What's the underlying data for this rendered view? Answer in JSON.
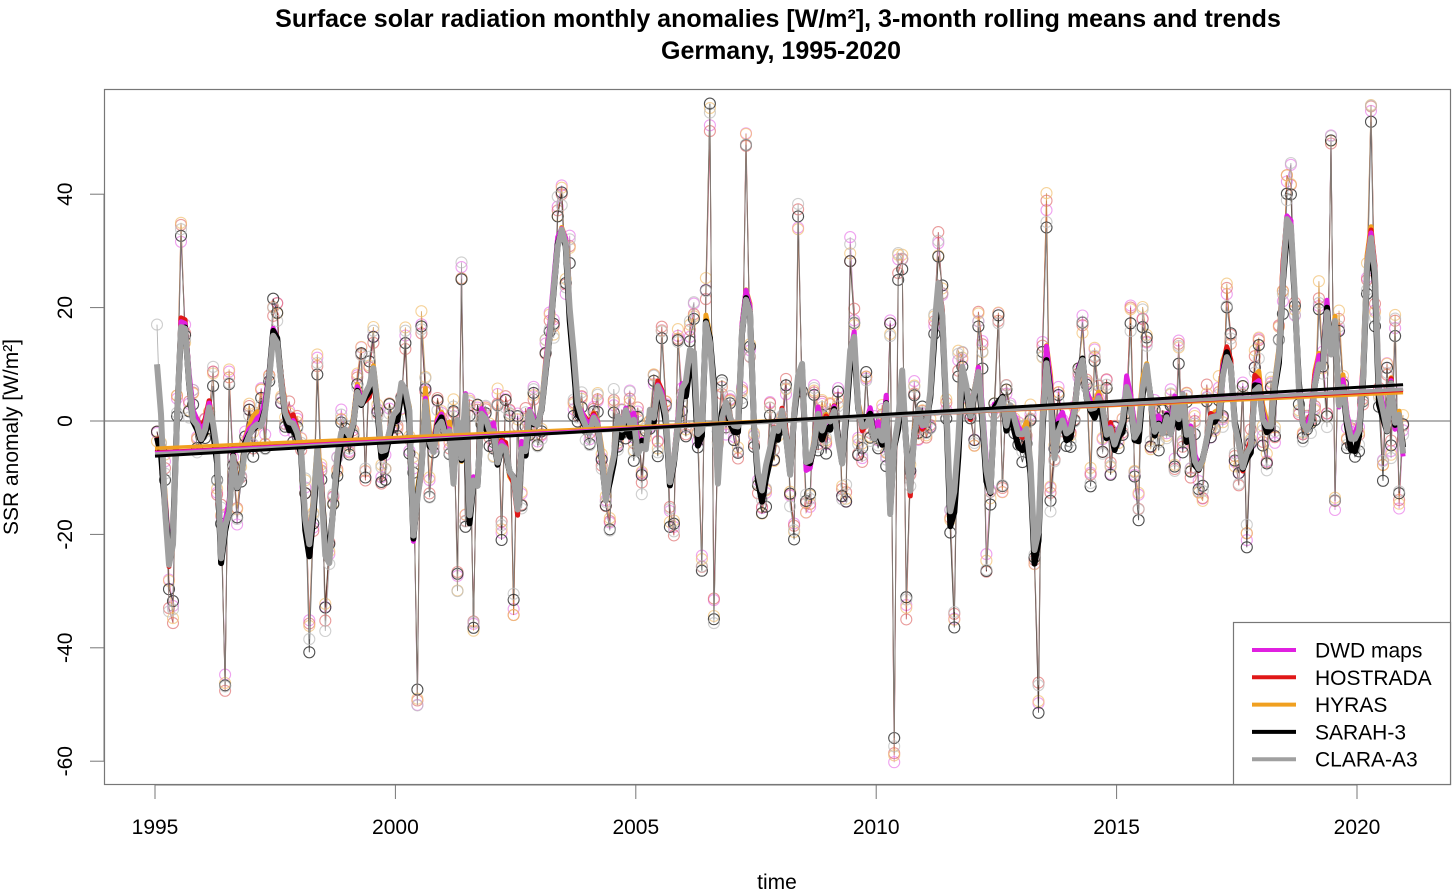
{
  "chart_data": {
    "type": "line",
    "title": "Surface solar radiation monthly anomalies [W/m²], 3-month rolling means and trends",
    "subtitle": "Germany, 1995-2020",
    "xlabel": "time",
    "ylabel": "SSR anomaly [W/m²]",
    "xlim": [
      1994.8,
      2021.5
    ],
    "ylim": [
      -64,
      58
    ],
    "x_ticks": [
      1995,
      2000,
      2005,
      2010,
      2015,
      2020
    ],
    "x_tick_labels": [
      "1995",
      "2000",
      "2005",
      "2010",
      "2015",
      "2020"
    ],
    "y_ticks": [
      -60,
      -40,
      -20,
      0,
      20,
      40
    ],
    "y_tick_labels": [
      "-60",
      "-40",
      "-20",
      "0",
      "20",
      "40"
    ],
    "reference_line": 0,
    "grid": false,
    "legend": {
      "position": "bottom-right",
      "entries": [
        "DWD maps",
        "HOSTRADA",
        "HYRAS",
        "SARAH-3",
        "CLARA-A3"
      ]
    },
    "time_start": 1995.0,
    "time_step_months": 1,
    "rolling_window_months": 3,
    "base_monthly_anomaly": [
      -3,
      -5,
      -8,
      -31,
      -34,
      3,
      33,
      15,
      2,
      4,
      -4,
      -2,
      -1,
      1,
      8,
      -12,
      -16,
      -47,
      7,
      -8,
      -17,
      -10,
      -3,
      2,
      -4,
      0,
      4,
      -4,
      8,
      20,
      19,
      4,
      -1,
      2,
      -2,
      0,
      -5,
      -12,
      -37,
      -18,
      11,
      -10,
      -35,
      -23,
      -14,
      -8,
      1,
      -2,
      -6,
      -2,
      7,
      13,
      -10,
      10,
      15,
      2,
      -10,
      -8,
      2,
      0,
      -1,
      3,
      14,
      -4,
      -8,
      -49,
      17,
      6,
      -12,
      -5,
      3,
      0,
      -2,
      -5,
      2,
      -28,
      27,
      -17,
      3,
      -35,
      2,
      0,
      3,
      -2,
      -6,
      4,
      -18,
      3,
      1,
      -33,
      0,
      -14,
      1,
      -2,
      4,
      -4,
      -2,
      13,
      18,
      16,
      37,
      40,
      24,
      30,
      3,
      2,
      4,
      -2,
      -3,
      1,
      4,
      -8,
      -14,
      -18,
      4,
      -4,
      1,
      -2,
      4,
      -5,
      1,
      -11,
      -2,
      0,
      7,
      -4,
      15,
      2,
      -17,
      -19,
      14,
      4,
      -2,
      16,
      20,
      -3,
      -25,
      23,
      53,
      -33,
      -3,
      6,
      -2,
      4,
      -2,
      -6,
      4,
      49,
      12,
      -4,
      -12,
      -15,
      -13,
      3,
      -6,
      -2,
      0,
      6,
      -14,
      -18,
      36,
      6,
      -15,
      -14,
      5,
      -3,
      2,
      -4,
      2,
      0,
      4,
      -13,
      -13,
      30,
      18,
      -5,
      -6,
      8,
      -2,
      -1,
      -3,
      1,
      -6,
      16,
      -59,
      28,
      27,
      -33,
      -10,
      6,
      -3,
      2,
      -2,
      0,
      18,
      31,
      22,
      2,
      -17,
      -36,
      10,
      11,
      4,
      1,
      -4,
      18,
      12,
      -26,
      -13,
      2,
      17,
      -12,
      6,
      3,
      0,
      -2,
      -5,
      -2,
      1,
      -25,
      -48,
      12,
      38,
      -14,
      -6,
      4,
      -1,
      -2,
      -3,
      1,
      8,
      17,
      6,
      -10,
      12,
      5,
      -5,
      6,
      -8,
      -2,
      -3,
      -1,
      2,
      18,
      -10,
      -15,
      19,
      15,
      -4,
      2,
      -3,
      1,
      -2,
      4,
      -8,
      13,
      -5,
      5,
      -10,
      0,
      -12,
      -13,
      5,
      -2,
      -1,
      6,
      0,
      22,
      15,
      -7,
      -10,
      5,
      -20,
      -3,
      10,
      13,
      -3,
      -8,
      6,
      -3,
      15,
      21,
      41,
      44,
      19,
      2,
      -3,
      0,
      -1,
      2,
      22,
      10,
      0,
      48,
      -15,
      17,
      6,
      -3,
      -2,
      -4,
      -3,
      3,
      25,
      53,
      19,
      5,
      -8,
      9,
      -5,
      17,
      -14,
      -1
    ],
    "series": [
      {
        "name": "DWD maps",
        "color": "#e020e0",
        "offset": 0.4,
        "noise": 3.0,
        "trend_start": -5.6,
        "trend_end": 5.6
      },
      {
        "name": "HOSTRADA",
        "color": "#e01818",
        "offset": 0.2,
        "noise": 2.5,
        "trend_start": -5.5,
        "trend_end": 5.4
      },
      {
        "name": "HYRAS",
        "color": "#f0a020",
        "offset": 0.6,
        "noise": 3.0,
        "trend_start": -4.8,
        "trend_end": 5.0
      },
      {
        "name": "SARAH-3",
        "color": "#000000",
        "offset": -0.6,
        "noise": 3.5,
        "trend_start": -6.2,
        "trend_end": 6.4
      },
      {
        "name": "CLARA-A3",
        "color": "#a0a0a0",
        "offset": 0.0,
        "noise": 3.0,
        "trend_start": -5.8,
        "trend_end": 5.6
      }
    ]
  }
}
